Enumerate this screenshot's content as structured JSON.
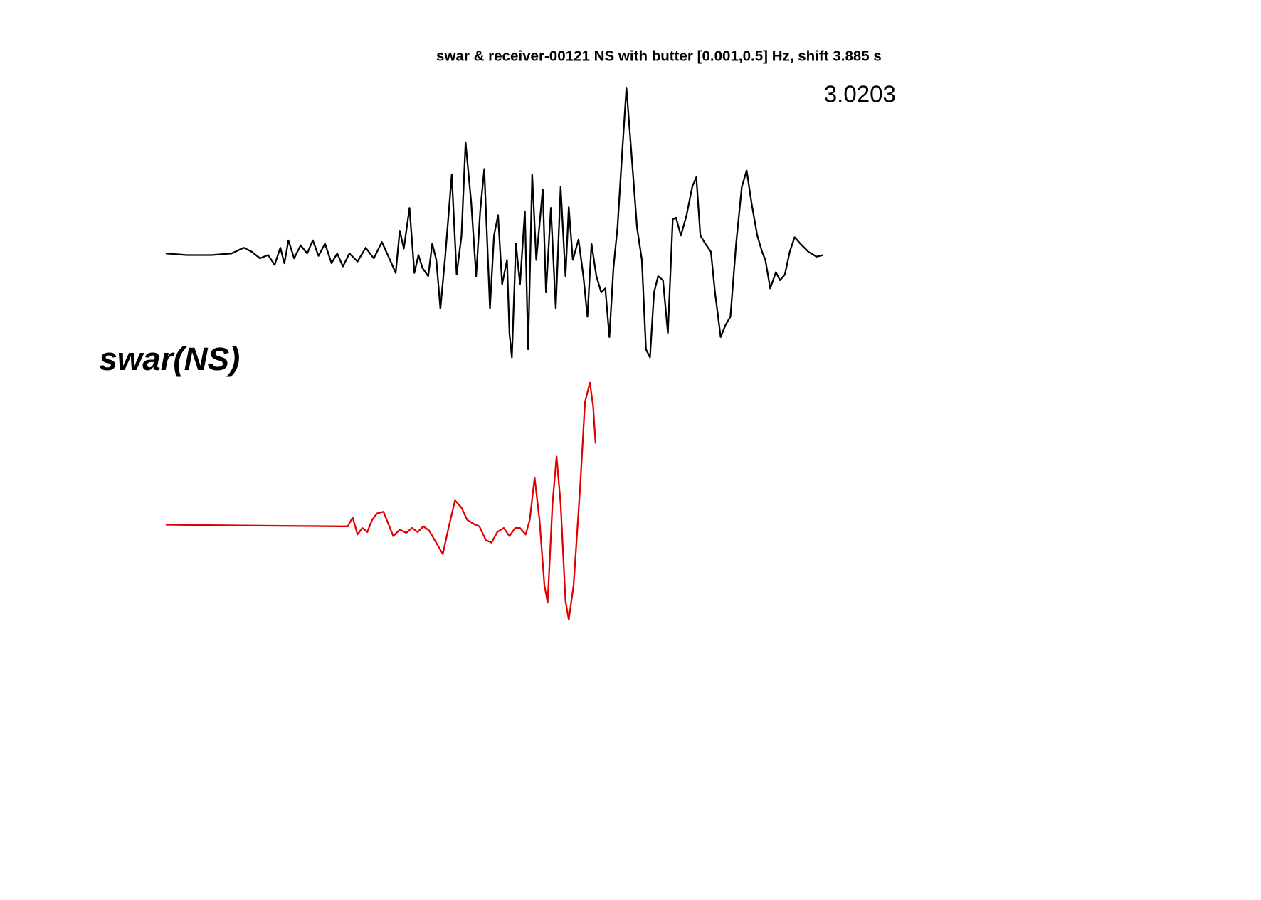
{
  "chart_data": {
    "type": "line",
    "title": "swar & receiver-00121 NS with butter [0.001,0.5] Hz, shift 3.885 s",
    "annotations": [
      "3.0203",
      "swar(NS)"
    ],
    "series": [
      {
        "color": "#000000",
        "x": [
          0,
          26,
          56,
          81,
          96,
          106,
          116,
          126,
          134,
          141,
          146,
          151,
          158,
          166,
          174,
          181,
          188,
          196,
          204,
          211,
          218,
          226,
          236,
          246,
          256,
          266,
          276,
          283,
          288,
          293,
          300,
          306,
          311,
          316,
          323,
          328,
          333,
          338,
          344,
          352,
          358,
          364,
          369,
          376,
          382,
          387,
          392,
          399,
          404,
          409,
          414,
          420,
          423,
          426,
          431,
          436,
          442,
          446,
          451,
          456,
          464,
          468,
          474,
          480,
          486,
          492,
          496,
          501,
          508,
          514,
          519,
          524,
          530,
          536,
          541,
          546,
          551,
          556,
          561,
          567,
          574,
          580,
          586,
          591,
          596,
          601,
          606,
          612,
          618,
          624,
          628,
          634,
          641,
          648,
          653,
          658,
          664,
          671,
          676,
          683,
          689,
          695,
          702,
          709,
          715,
          721,
          728,
          734,
          738,
          744,
          751,
          756,
          762,
          768,
          774,
          781,
          791,
          801,
          809
        ],
        "values": [
          0,
          -2,
          -2,
          0,
          7,
          2,
          -6,
          -2,
          -14,
          7,
          -12,
          16,
          -6,
          10,
          0,
          16,
          -3,
          12,
          -12,
          0,
          -16,
          0,
          -10,
          7,
          -6,
          14,
          -8,
          -24,
          28,
          6,
          56,
          -24,
          -2,
          -18,
          -28,
          12,
          -8,
          -68,
          -3,
          97,
          -26,
          22,
          137,
          62,
          -28,
          52,
          104,
          -68,
          22,
          47,
          -38,
          -8,
          -98,
          -128,
          12,
          -38,
          52,
          -118,
          97,
          -8,
          79,
          -48,
          56,
          -68,
          82,
          -28,
          57,
          -8,
          17,
          -28,
          -78,
          12,
          -28,
          -48,
          -43,
          -103,
          -18,
          32,
          112,
          204,
          112,
          32,
          -8,
          -118,
          -128,
          -48,
          -28,
          -33,
          -98,
          42,
          44,
          22,
          47,
          82,
          94,
          22,
          12,
          2,
          -48,
          -103,
          -88,
          -78,
          12,
          82,
          102,
          62,
          22,
          2,
          -8,
          -43,
          -23,
          -33,
          -26,
          2,
          20,
          12,
          2,
          -4,
          -2
        ]
      },
      {
        "color": "#e00000",
        "x": [
          0,
          96,
          216,
          224,
          230,
          236,
          242,
          248,
          254,
          260,
          268,
          274,
          280,
          288,
          296,
          303,
          310,
          317,
          324,
          331,
          341,
          348,
          356,
          364,
          371,
          379,
          386,
          394,
          401,
          408,
          416,
          423,
          430,
          436,
          443,
          448,
          454,
          460,
          466,
          470,
          476,
          481,
          486,
          492,
          496,
          502,
          510,
          516,
          522,
          526,
          529
        ],
        "values": [
          0,
          -1,
          -2,
          -2,
          9,
          -12,
          -4,
          -9,
          6,
          14,
          16,
          1,
          -14,
          -6,
          -10,
          -4,
          -9,
          -2,
          -7,
          -19,
          -36,
          -4,
          30,
          21,
          6,
          1,
          -2,
          -19,
          -22,
          -9,
          -4,
          -14,
          -4,
          -4,
          -12,
          6,
          58,
          6,
          -74,
          -96,
          26,
          84,
          26,
          -94,
          -117,
          -74,
          46,
          151,
          175,
          146,
          100
        ]
      }
    ]
  }
}
